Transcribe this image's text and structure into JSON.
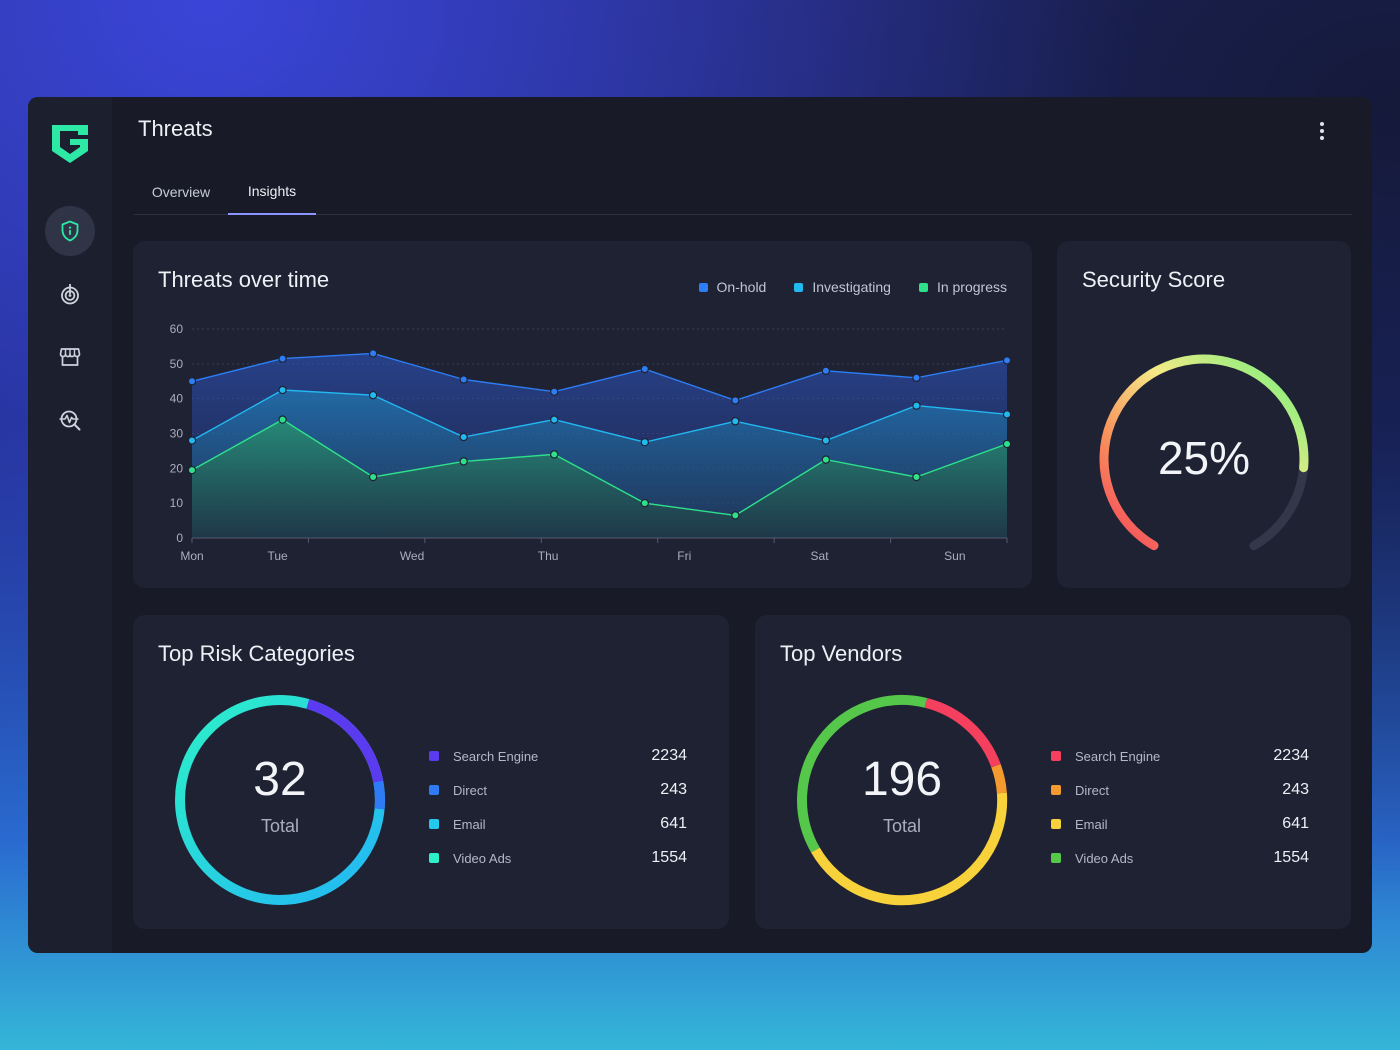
{
  "page": {
    "title": "Threats"
  },
  "tabs": [
    {
      "label": "Overview",
      "active": false
    },
    {
      "label": "Insights",
      "active": true
    }
  ],
  "sidebar": {
    "items": [
      {
        "icon": "shield-info-icon",
        "active": true
      },
      {
        "icon": "target-icon",
        "active": false
      },
      {
        "icon": "store-icon",
        "active": false
      },
      {
        "icon": "search-activity-icon",
        "active": false
      }
    ]
  },
  "threats_card": {
    "title": "Threats over time",
    "legend": [
      {
        "label": "On-hold",
        "color": "#2d7df5"
      },
      {
        "label": "Investigating",
        "color": "#22b8f0"
      },
      {
        "label": "In progress",
        "color": "#2ee08a"
      }
    ]
  },
  "chart_data": {
    "type": "area",
    "title": "Threats over time",
    "y_ticks": [
      "0",
      "10",
      "20",
      "30",
      "40",
      "50",
      "60"
    ],
    "ylim": [
      0,
      60
    ],
    "x_tick_labels": [
      "Mon",
      "Tue",
      "Wed",
      "Thu",
      "Fri",
      "Sat",
      "Sun"
    ],
    "x_points": 10,
    "grid": true,
    "legend_position": "top-right",
    "series": [
      {
        "name": "On-hold",
        "color": "#2d7df5",
        "values": [
          45,
          51.5,
          53,
          45.5,
          42,
          48.5,
          39.5,
          48,
          46,
          51
        ]
      },
      {
        "name": "Investigating",
        "color": "#22b8f0",
        "values": [
          28,
          42.5,
          41,
          29,
          34,
          27.5,
          33.5,
          28,
          38,
          35.5
        ]
      },
      {
        "name": "In progress",
        "color": "#2ee08a",
        "values": [
          19.5,
          34,
          17.5,
          22,
          24,
          10,
          6.5,
          22.5,
          17.5,
          27
        ]
      }
    ]
  },
  "security_score": {
    "title": "Security Score",
    "value_text": "25%",
    "value": 25
  },
  "risk_card": {
    "title": "Top Risk Categories",
    "total": "32",
    "total_label": "Total",
    "items": [
      {
        "label": "Search Engine",
        "value": "2234",
        "color": "#5b3bf0"
      },
      {
        "label": "Direct",
        "value": "243",
        "color": "#2f7af5"
      },
      {
        "label": "Email",
        "value": "641",
        "color": "#22c8ee"
      },
      {
        "label": "Video Ads",
        "value": "1554",
        "color": "#2df0c8"
      }
    ]
  },
  "vendors_card": {
    "title": "Top Vendors",
    "total": "196",
    "total_label": "Total",
    "items": [
      {
        "label": "Search Engine",
        "value": "2234",
        "color": "#f4405e"
      },
      {
        "label": "Direct",
        "value": "243",
        "color": "#f59a2f"
      },
      {
        "label": "Email",
        "value": "641",
        "color": "#f8d23a"
      },
      {
        "label": "Video Ads",
        "value": "1554",
        "color": "#55c74a"
      }
    ]
  }
}
